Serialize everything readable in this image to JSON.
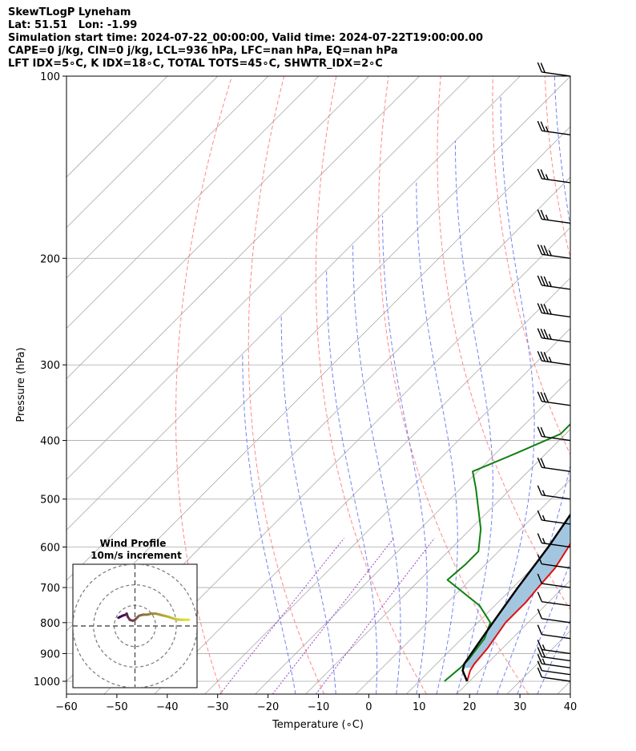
{
  "header": {
    "line1": "SkewTLogP Lyneham",
    "line2": "Lat: 51.51   Lon: -1.99",
    "line3": "Simulation start time: 2024-07-22_00:00:00, Valid time: 2024-07-22T19:00:00.00",
    "line4": "CAPE=0 j/kg, CIN=0 j/kg, LCL=936 hPa, LFC=nan hPa, EQ=nan hPa",
    "line5": "LFT IDX=5∘C, K IDX=18∘C, TOTAL TOTS=45∘C, SHWTR_IDX=2∘C"
  },
  "chart_data": {
    "type": "line",
    "xlabel": "Temperature (∘C)",
    "ylabel": "Pressure (hPa)",
    "xlim": [
      -60,
      40
    ],
    "ylim": [
      1050,
      100
    ],
    "x_ticks": [
      "−60",
      "−50",
      "−40",
      "−30",
      "−20",
      "−10",
      "0",
      "10",
      "20",
      "30",
      "40"
    ],
    "y_ticks": [
      "100",
      "200",
      "300",
      "400",
      "500",
      "600",
      "700",
      "800",
      "900",
      "1000"
    ],
    "y_scale": "log",
    "grid": true,
    "colors": {
      "temperature": "#e01010",
      "dewpoint": "#108010",
      "parcel": "#000000",
      "shade": "#a3c6e0",
      "dry_adiabat": "#ff6a6a",
      "moist_adiabat": "#5a6cf0",
      "mixing_ratio": "#9a40c8",
      "isotherm": "#aaaaaa"
    },
    "series": [
      {
        "key": "temperature",
        "points": [
          [
            19.5,
            1000
          ],
          [
            18,
            960
          ],
          [
            17.5,
            936
          ],
          [
            17,
            880
          ],
          [
            15.5,
            800
          ],
          [
            15.5,
            740
          ],
          [
            15,
            700
          ],
          [
            14.5,
            650
          ],
          [
            13,
            600
          ],
          [
            11,
            550
          ],
          [
            8.5,
            500
          ],
          [
            6,
            450
          ],
          [
            3,
            400
          ],
          [
            0,
            355
          ],
          [
            -3,
            320
          ],
          [
            -5,
            300
          ],
          [
            -6,
            280
          ],
          [
            -6.5,
            260
          ],
          [
            -6,
            240
          ],
          [
            -5,
            220
          ],
          [
            -3,
            200
          ],
          [
            -0.5,
            185
          ],
          [
            3,
            170
          ],
          [
            7,
            155
          ],
          [
            10,
            145
          ],
          [
            12,
            135
          ],
          [
            13,
            125
          ],
          [
            14,
            117
          ],
          [
            14.5,
            110
          ],
          [
            16,
            103
          ],
          [
            17,
            100
          ]
        ]
      },
      {
        "key": "dewpoint",
        "points": [
          [
            15,
            1000
          ],
          [
            15.5,
            950
          ],
          [
            15.5,
            920
          ],
          [
            14.5,
            850
          ],
          [
            12.5,
            800
          ],
          [
            7,
            750
          ],
          [
            -4.5,
            680
          ],
          [
            -4,
            640
          ],
          [
            -4,
            610
          ],
          [
            -8,
            560
          ],
          [
            -17,
            480
          ],
          [
            -21,
            450
          ],
          [
            -16,
            420
          ],
          [
            -11,
            390
          ],
          [
            -11,
            360
          ],
          [
            -12,
            330
          ],
          [
            -14,
            300
          ],
          [
            -16,
            270
          ],
          [
            -16,
            250
          ],
          [
            -15,
            225
          ],
          [
            -14,
            200
          ],
          [
            -13,
            182
          ],
          [
            -16,
            170
          ],
          [
            -22,
            157
          ],
          [
            -18,
            140
          ],
          [
            -13,
            125
          ],
          [
            -7,
            110
          ],
          [
            -2,
            100
          ]
        ]
      },
      {
        "key": "parcel",
        "points": [
          [
            19.5,
            1000
          ],
          [
            16.5,
            960
          ],
          [
            15.5,
            936
          ],
          [
            14.5,
            880
          ],
          [
            13,
            800
          ],
          [
            11,
            700
          ],
          [
            9,
            600
          ],
          [
            6,
            500
          ],
          [
            3,
            440
          ],
          [
            0,
            400
          ],
          [
            -5,
            350
          ],
          [
            -12,
            300
          ],
          [
            -19,
            260
          ],
          [
            -27,
            220
          ],
          [
            -34,
            190
          ],
          [
            -41,
            165
          ],
          [
            -48,
            145
          ],
          [
            -55,
            130
          ],
          [
            -60,
            118
          ],
          [
            -64,
            100
          ]
        ]
      }
    ],
    "inset": {
      "title": "Wind Profile",
      "subtitle": "10m/s increment",
      "u_lim": [
        -30,
        30
      ],
      "v_lim": [
        -30,
        30
      ],
      "rings": [
        10,
        20,
        30
      ],
      "hodograph": [
        [
          -8,
          4
        ],
        [
          -6,
          5
        ],
        [
          -4.5,
          5.5
        ],
        [
          -4,
          6
        ],
        [
          -3.5,
          4.5
        ],
        [
          -2.5,
          3
        ],
        [
          -1,
          2.5
        ],
        [
          0,
          3
        ],
        [
          1,
          4
        ],
        [
          2,
          5
        ],
        [
          4,
          5.5
        ],
        [
          6,
          5.5
        ],
        [
          8,
          6
        ],
        [
          10,
          6
        ],
        [
          12,
          5.5
        ],
        [
          14,
          5
        ],
        [
          16,
          4.5
        ],
        [
          18,
          3.8
        ],
        [
          20,
          3.2
        ],
        [
          22,
          3
        ],
        [
          24,
          3
        ],
        [
          26,
          3
        ]
      ]
    },
    "wind_barbs": [
      {
        "p": 1000,
        "flags": 0,
        "full": 1,
        "half": 0
      },
      {
        "p": 975,
        "flags": 0,
        "full": 1,
        "half": 0
      },
      {
        "p": 950,
        "flags": 0,
        "full": 1,
        "half": 1
      },
      {
        "p": 925,
        "flags": 0,
        "full": 2,
        "half": 0
      },
      {
        "p": 900,
        "flags": 0,
        "full": 1,
        "half": 1
      },
      {
        "p": 850,
        "flags": 0,
        "full": 1,
        "half": 0
      },
      {
        "p": 800,
        "flags": 0,
        "full": 1,
        "half": 0
      },
      {
        "p": 750,
        "flags": 0,
        "full": 1,
        "half": 0
      },
      {
        "p": 700,
        "flags": 0,
        "full": 1,
        "half": 0
      },
      {
        "p": 650,
        "flags": 0,
        "full": 1,
        "half": 0
      },
      {
        "p": 600,
        "flags": 0,
        "full": 1,
        "half": 1
      },
      {
        "p": 550,
        "flags": 0,
        "full": 1,
        "half": 1
      },
      {
        "p": 500,
        "flags": 0,
        "full": 1,
        "half": 1
      },
      {
        "p": 450,
        "flags": 0,
        "full": 2,
        "half": 0
      },
      {
        "p": 400,
        "flags": 0,
        "full": 2,
        "half": 0
      },
      {
        "p": 350,
        "flags": 0,
        "full": 3,
        "half": 0
      },
      {
        "p": 300,
        "flags": 0,
        "full": 3,
        "half": 1
      },
      {
        "p": 275,
        "flags": 0,
        "full": 3,
        "half": 1
      },
      {
        "p": 250,
        "flags": 0,
        "full": 3,
        "half": 1
      },
      {
        "p": 225,
        "flags": 0,
        "full": 3,
        "half": 1
      },
      {
        "p": 200,
        "flags": 0,
        "full": 3,
        "half": 1
      },
      {
        "p": 175,
        "flags": 0,
        "full": 2,
        "half": 1
      },
      {
        "p": 150,
        "flags": 0,
        "full": 2,
        "half": 1
      },
      {
        "p": 125,
        "flags": 0,
        "full": 2,
        "half": 1
      },
      {
        "p": 100,
        "flags": 0,
        "full": 2,
        "half": 0
      }
    ]
  }
}
